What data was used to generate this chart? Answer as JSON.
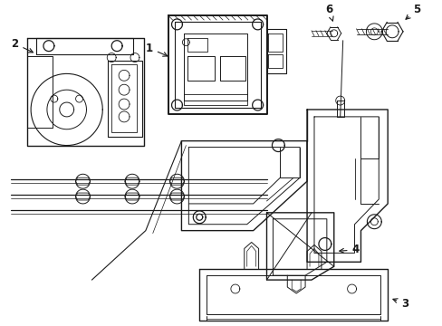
{
  "bg_color": "#ffffff",
  "line_color": "#1a1a1a",
  "lw": 0.9,
  "label_fontsize": 8.5
}
